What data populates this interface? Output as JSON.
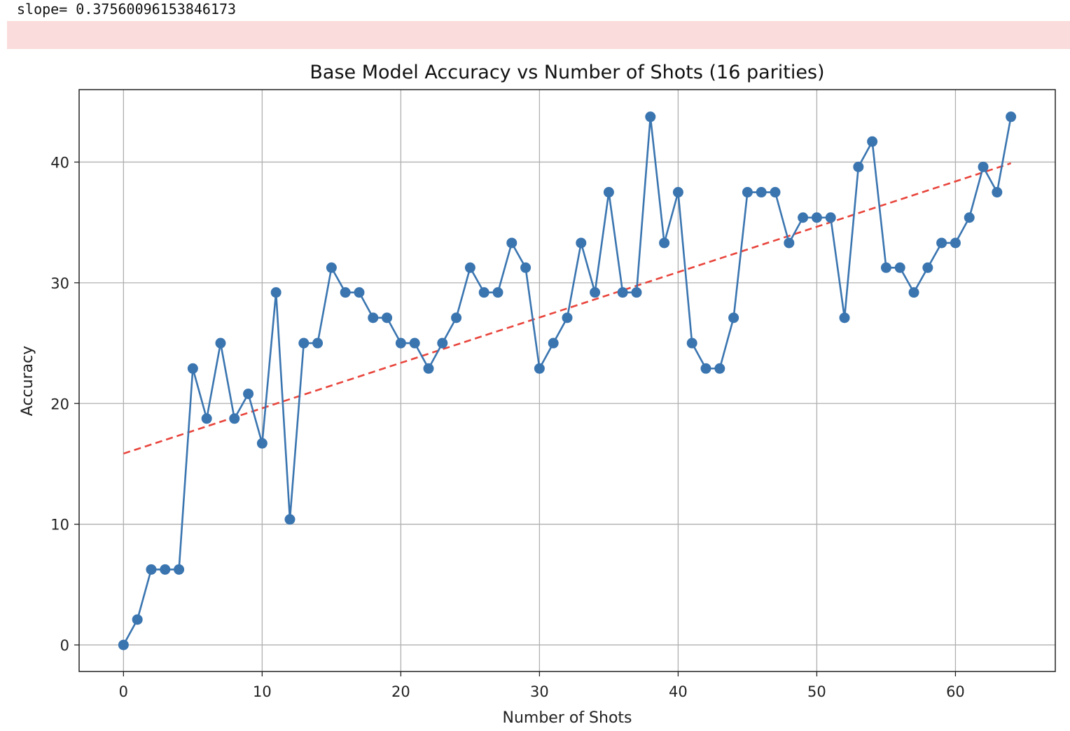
{
  "output": {
    "slope_text": "slope= 0.37560096153846173"
  },
  "chart_data": {
    "type": "line",
    "title": "Base Model Accuracy vs Number of Shots (16 parities)",
    "xlabel": "Number of Shots",
    "ylabel": "Accuracy",
    "xlim": [
      -3.2,
      67.2
    ],
    "ylim": [
      -2.2,
      46.0
    ],
    "xticks": [
      0,
      10,
      20,
      30,
      40,
      50,
      60
    ],
    "yticks": [
      0,
      10,
      20,
      30,
      40
    ],
    "grid": true,
    "legend": "none",
    "series": [
      {
        "type": "line-marker",
        "color": "#3a75b0",
        "x": [
          0,
          1,
          2,
          3,
          4,
          5,
          6,
          7,
          8,
          9,
          10,
          11,
          12,
          13,
          14,
          15,
          16,
          17,
          18,
          19,
          20,
          21,
          22,
          23,
          24,
          25,
          26,
          27,
          28,
          29,
          30,
          31,
          32,
          33,
          34,
          35,
          36,
          37,
          38,
          39,
          40,
          41,
          42,
          43,
          44,
          45,
          46,
          47,
          48,
          49,
          50,
          51,
          52,
          53,
          54,
          55,
          56,
          57,
          58,
          59,
          60,
          61,
          62,
          63,
          64
        ],
        "y": [
          0,
          2.1,
          6.25,
          6.25,
          6.25,
          22.9,
          18.75,
          25.0,
          18.75,
          20.8,
          16.7,
          29.2,
          10.4,
          25.0,
          25.0,
          31.25,
          29.2,
          29.2,
          27.1,
          27.1,
          25.0,
          25.0,
          22.9,
          25.0,
          27.1,
          31.25,
          29.2,
          29.2,
          33.3,
          31.25,
          22.9,
          25.0,
          27.1,
          33.3,
          29.2,
          37.5,
          29.2,
          29.2,
          43.75,
          33.3,
          37.5,
          25.0,
          22.9,
          22.9,
          27.1,
          37.5,
          37.5,
          37.5,
          33.3,
          35.4,
          35.4,
          35.4,
          27.1,
          39.6,
          41.7,
          31.25,
          31.25,
          29.2,
          31.25,
          33.3,
          33.3,
          35.4,
          39.6,
          37.5,
          43.75
        ]
      },
      {
        "type": "trend-dashed",
        "color": "#e8453c",
        "slope": 0.37560096153846173,
        "x": [
          0,
          64
        ],
        "y": [
          15.85,
          39.9
        ]
      }
    ]
  }
}
